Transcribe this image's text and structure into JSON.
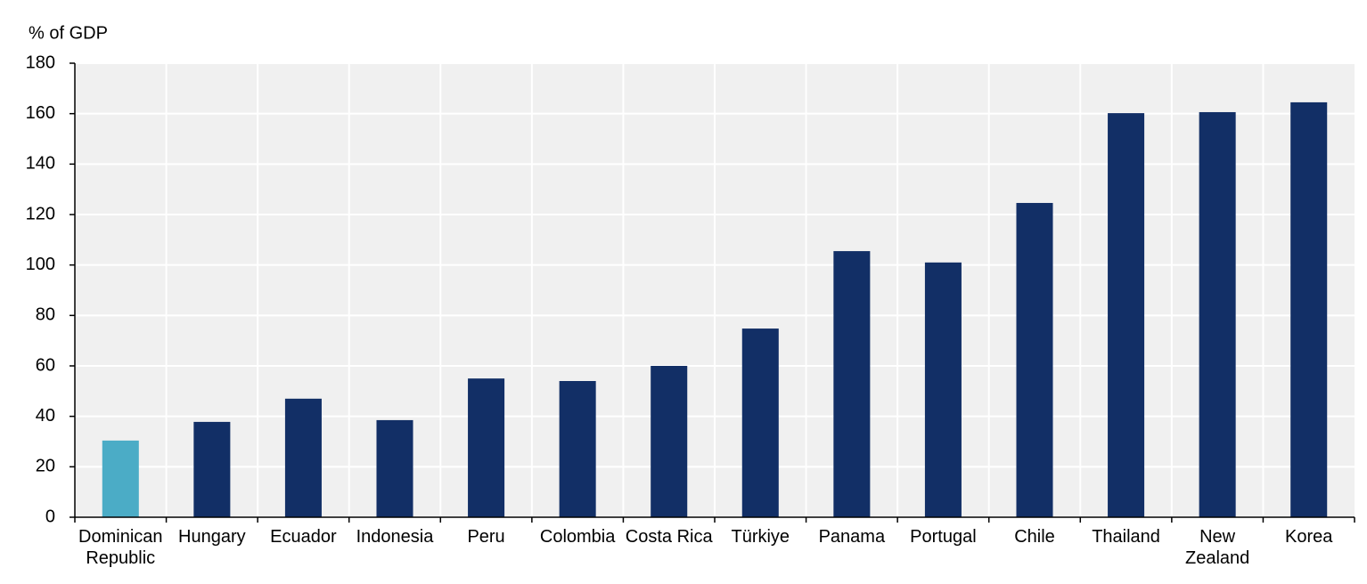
{
  "chart_data": {
    "type": "bar",
    "y_label": "% of GDP",
    "categories": [
      "Dominican Republic",
      "Hungary",
      "Ecuador",
      "Indonesia",
      "Peru",
      "Colombia",
      "Costa Rica",
      "Türkiye",
      "Panama",
      "Portugal",
      "Chile",
      "Thailand",
      "New Zealand",
      "Korea"
    ],
    "values": [
      30.4,
      37.8,
      47,
      38.5,
      55,
      54,
      60,
      74.8,
      105.5,
      101,
      124.6,
      160.2,
      160.6,
      164.5
    ],
    "colors": [
      "#4bacc6",
      "#122f66",
      "#122f66",
      "#122f66",
      "#122f66",
      "#122f66",
      "#122f66",
      "#122f66",
      "#122f66",
      "#122f66",
      "#122f66",
      "#122f66",
      "#122f66",
      "#122f66"
    ],
    "ylim": [
      0,
      180
    ],
    "yticks": [
      0,
      20,
      40,
      60,
      80,
      100,
      120,
      140,
      160,
      180
    ],
    "grid": true
  }
}
